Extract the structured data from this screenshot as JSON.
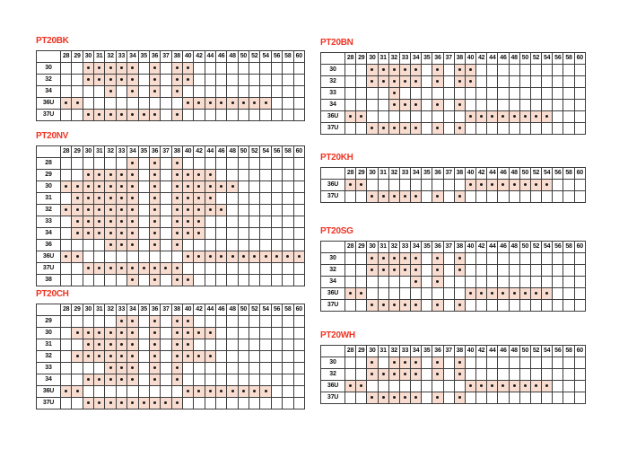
{
  "colors": {
    "title_red": "#ee3424",
    "cell_shade": "#f8dcd0",
    "grid_line": "#3c3c3c",
    "dot": "#1c1c1c"
  },
  "sizes": [
    "28",
    "29",
    "30",
    "31",
    "32",
    "33",
    "34",
    "35",
    "36",
    "37",
    "38",
    "40",
    "42",
    "44",
    "46",
    "48",
    "50",
    "52",
    "54",
    "56",
    "58",
    "60"
  ],
  "tables": [
    {
      "id": "PT20BK",
      "rows": [
        {
          "label": "30",
          "dots": [
            "30",
            "31",
            "32",
            "33",
            "34",
            "36",
            "38",
            "40"
          ]
        },
        {
          "label": "32",
          "dots": [
            "30",
            "31",
            "32",
            "33",
            "34",
            "36",
            "38",
            "40"
          ]
        },
        {
          "label": "34",
          "dots": [
            "32",
            "34",
            "36",
            "38"
          ]
        },
        {
          "label": "36U",
          "dots": [
            "28",
            "29",
            "40",
            "42",
            "44",
            "46",
            "48",
            "50",
            "52",
            "54"
          ]
        },
        {
          "label": "37U",
          "dots": [
            "30",
            "31",
            "32",
            "33",
            "34",
            "35",
            "36",
            "38"
          ]
        }
      ]
    },
    {
      "id": "PT20NV",
      "rows": [
        {
          "label": "28",
          "dots": [
            "34",
            "36",
            "38"
          ]
        },
        {
          "label": "29",
          "dots": [
            "30",
            "31",
            "32",
            "33",
            "34",
            "36",
            "38",
            "40",
            "42",
            "44"
          ]
        },
        {
          "label": "30",
          "dots": [
            "28",
            "29",
            "30",
            "31",
            "32",
            "33",
            "34",
            "36",
            "38",
            "40",
            "42",
            "44",
            "46",
            "48"
          ]
        },
        {
          "label": "31",
          "dots": [
            "29",
            "30",
            "31",
            "32",
            "33",
            "34",
            "36",
            "38",
            "40",
            "42",
            "44"
          ]
        },
        {
          "label": "32",
          "dots": [
            "28",
            "29",
            "30",
            "31",
            "32",
            "33",
            "34",
            "36",
            "38",
            "40",
            "42",
            "44",
            "46"
          ]
        },
        {
          "label": "33",
          "dots": [
            "29",
            "30",
            "31",
            "32",
            "33",
            "34",
            "36",
            "38",
            "40",
            "42"
          ]
        },
        {
          "label": "34",
          "dots": [
            "29",
            "30",
            "31",
            "32",
            "33",
            "34",
            "36",
            "38",
            "40",
            "42"
          ]
        },
        {
          "label": "36",
          "dots": [
            "32",
            "33",
            "34",
            "36",
            "38"
          ]
        },
        {
          "label": "36U",
          "dots": [
            "28",
            "29",
            "40",
            "42",
            "44",
            "46",
            "48",
            "50",
            "52",
            "54",
            "56",
            "58",
            "60"
          ]
        },
        {
          "label": "37U",
          "dots": [
            "30",
            "31",
            "32",
            "33",
            "34",
            "35",
            "36",
            "37",
            "38"
          ]
        },
        {
          "label": "38",
          "dots": [
            "34",
            "36",
            "38",
            "40"
          ]
        }
      ]
    },
    {
      "id": "PT20CH",
      "rows": [
        {
          "label": "29",
          "dots": [
            "33",
            "34",
            "36",
            "38",
            "40"
          ]
        },
        {
          "label": "30",
          "dots": [
            "29",
            "30",
            "31",
            "32",
            "33",
            "34",
            "36",
            "38",
            "40",
            "42",
            "44"
          ]
        },
        {
          "label": "31",
          "dots": [
            "30",
            "31",
            "32",
            "33",
            "34",
            "36",
            "38",
            "40"
          ]
        },
        {
          "label": "32",
          "dots": [
            "29",
            "30",
            "31",
            "32",
            "33",
            "34",
            "36",
            "38",
            "40",
            "42",
            "44"
          ]
        },
        {
          "label": "33",
          "dots": [
            "32",
            "33",
            "34",
            "36",
            "38"
          ]
        },
        {
          "label": "34",
          "dots": [
            "30",
            "31",
            "32",
            "33",
            "34",
            "36",
            "38"
          ]
        },
        {
          "label": "36U",
          "dots": [
            "28",
            "29",
            "40",
            "42",
            "44",
            "46",
            "48",
            "50",
            "52",
            "54"
          ]
        },
        {
          "label": "37U",
          "dots": [
            "30",
            "31",
            "32",
            "33",
            "34",
            "35",
            "36",
            "37",
            "38"
          ]
        }
      ]
    },
    {
      "id": "PT20BN",
      "rows": [
        {
          "label": "30",
          "dots": [
            "30",
            "31",
            "32",
            "33",
            "34",
            "36",
            "38",
            "40"
          ]
        },
        {
          "label": "32",
          "dots": [
            "30",
            "31",
            "32",
            "33",
            "34",
            "36",
            "38",
            "40"
          ]
        },
        {
          "label": "33",
          "dots": [
            "32"
          ]
        },
        {
          "label": "34",
          "dots": [
            "32",
            "33",
            "34",
            "36",
            "38"
          ]
        },
        {
          "label": "36U",
          "dots": [
            "28",
            "29",
            "40",
            "42",
            "44",
            "46",
            "48",
            "50",
            "52",
            "54"
          ]
        },
        {
          "label": "37U",
          "dots": [
            "30",
            "31",
            "32",
            "33",
            "34",
            "36",
            "38"
          ]
        }
      ]
    },
    {
      "id": "PT20KH",
      "rows": [
        {
          "label": "36U",
          "dots": [
            "28",
            "29",
            "40",
            "42",
            "44",
            "46",
            "48",
            "50",
            "52",
            "54"
          ]
        },
        {
          "label": "37U",
          "dots": [
            "30",
            "31",
            "32",
            "33",
            "34",
            "36",
            "38"
          ]
        }
      ]
    },
    {
      "id": "PT20SG",
      "rows": [
        {
          "label": "30",
          "dots": [
            "30",
            "31",
            "32",
            "33",
            "34",
            "36",
            "38"
          ]
        },
        {
          "label": "32",
          "dots": [
            "30",
            "31",
            "32",
            "33",
            "34",
            "36",
            "38"
          ]
        },
        {
          "label": "34",
          "dots": [
            "34",
            "36"
          ]
        },
        {
          "label": "36U",
          "dots": [
            "28",
            "29",
            "40",
            "42",
            "44",
            "46",
            "48",
            "50",
            "52",
            "54"
          ]
        },
        {
          "label": "37U",
          "dots": [
            "30",
            "31",
            "32",
            "33",
            "34",
            "36",
            "38"
          ]
        }
      ]
    },
    {
      "id": "PT20WH",
      "rows": [
        {
          "label": "30",
          "dots": [
            "30",
            "32",
            "33",
            "34",
            "36",
            "38"
          ]
        },
        {
          "label": "32",
          "dots": [
            "30",
            "31",
            "32",
            "33",
            "34",
            "36",
            "38"
          ]
        },
        {
          "label": "36U",
          "dots": [
            "28",
            "29",
            "40",
            "42",
            "44",
            "46",
            "48",
            "50",
            "52",
            "54"
          ]
        },
        {
          "label": "37U",
          "dots": [
            "30",
            "31",
            "32",
            "33",
            "34",
            "36",
            "38"
          ]
        }
      ]
    }
  ]
}
